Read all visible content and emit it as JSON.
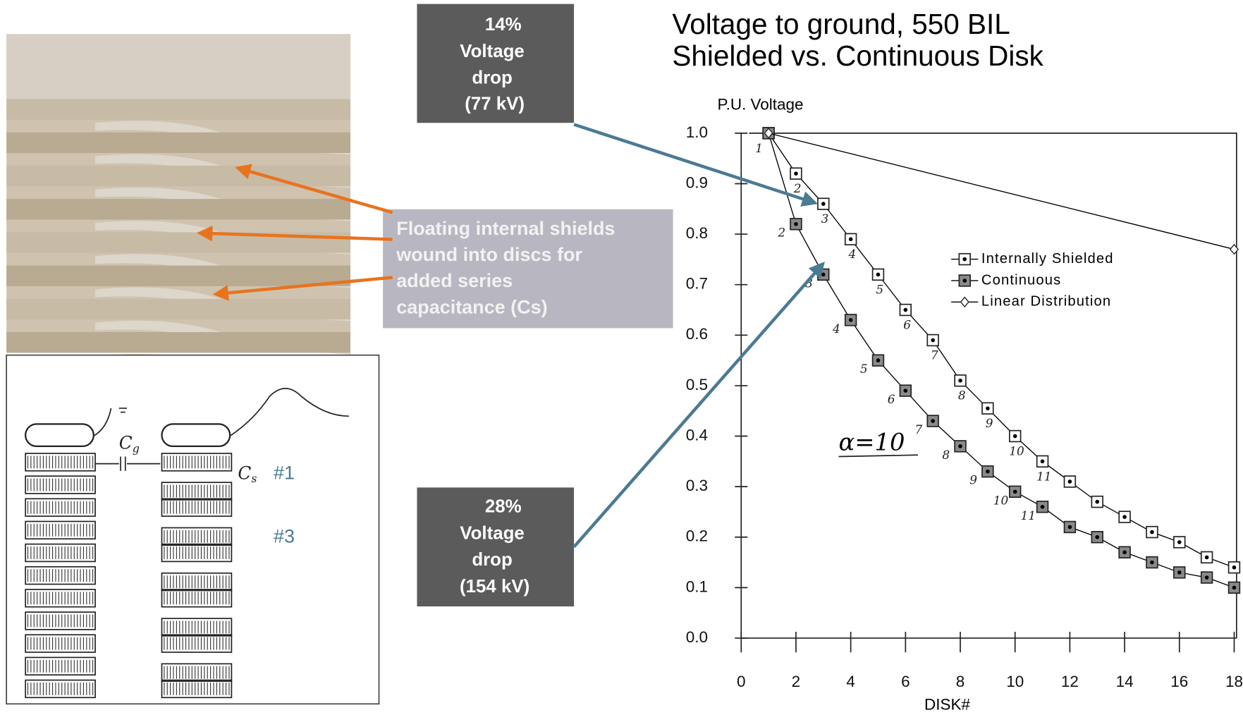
{
  "chart_data": {
    "type": "line",
    "title": [
      "Voltage to ground, 550 BIL",
      "Shielded vs. Continuous Disk"
    ],
    "ylabel": "P.U. Voltage",
    "xlabel": "DISK#",
    "annotation": "α=10",
    "x": [
      1,
      2,
      3,
      4,
      5,
      6,
      7,
      8,
      9,
      10,
      11,
      12,
      13,
      14,
      15,
      16,
      17,
      18
    ],
    "series": [
      {
        "name": "Internally Shielded",
        "color": "#000000",
        "marker": "dot-square",
        "values": [
          1.0,
          0.92,
          0.86,
          0.79,
          0.72,
          0.65,
          0.59,
          0.51,
          0.455,
          0.4,
          0.35,
          0.31,
          0.27,
          0.24,
          0.21,
          0.19,
          0.16,
          0.14
        ],
        "point_labels": [
          1,
          2,
          3,
          4,
          5,
          6,
          7,
          8,
          9,
          10,
          11,
          null,
          null,
          null,
          null,
          null,
          null,
          null
        ]
      },
      {
        "name": "Continuous",
        "color": "#000000",
        "marker": "filled-square",
        "values": [
          1.0,
          0.82,
          0.72,
          0.63,
          0.55,
          0.49,
          0.43,
          0.38,
          0.33,
          0.29,
          0.26,
          0.22,
          0.2,
          0.17,
          0.15,
          0.13,
          0.12,
          0.1
        ],
        "point_labels": [
          null,
          2,
          3,
          4,
          5,
          6,
          7,
          8,
          9,
          10,
          11,
          null,
          null,
          null,
          null,
          null,
          null,
          null
        ]
      },
      {
        "name": "Linear Distribution",
        "color": "#000000",
        "marker": "diamond",
        "x": [
          1,
          18
        ],
        "values": [
          1.0,
          0.77
        ]
      }
    ],
    "xlim": [
      0,
      18
    ],
    "xticks": [
      0,
      2,
      4,
      6,
      8,
      10,
      12,
      14,
      16,
      18
    ],
    "ylim": [
      0,
      1.0
    ],
    "yticks": [
      {
        "value": 0,
        "label": "0.0"
      },
      0.1,
      0.2,
      0.3,
      0.4,
      0.5,
      0.6,
      0.7,
      0.8,
      0.9,
      {
        "value": 1,
        "label": "1.0"
      }
    ]
  },
  "callouts": [
    {
      "lines": [
        "14%",
        "Voltage",
        "drop",
        "(77 kV)"
      ]
    },
    {
      "lines": [
        "28%",
        "Voltage",
        "drop",
        "(154 kV)"
      ]
    }
  ],
  "shield_note": {
    "lines": [
      "Floating internal shields",
      "wound into discs for",
      "added series",
      "capacitance (Cs)"
    ]
  },
  "sketch": {
    "cg": "C",
    "cg_sub": "g",
    "cs": "C",
    "cs_sub": "s",
    "marks": [
      "#1",
      "#3"
    ]
  }
}
